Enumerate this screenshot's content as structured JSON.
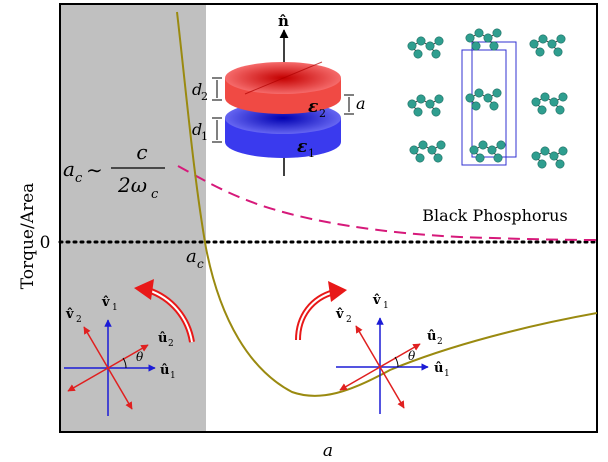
{
  "axes": {
    "ylabel": "Torque/Area",
    "xlabel": "a",
    "zero_label": "0"
  },
  "annotations": {
    "ac_formula_lhs": "a",
    "ac_formula_lhs_sub": "c",
    "ac_formula_sim": "∼",
    "ac_formula_num": "c",
    "ac_formula_den": "2ω",
    "ac_formula_den_sub": "c",
    "ac_point": "a",
    "ac_point_sub": "c",
    "material": "Black Phosphorus"
  },
  "diagram": {
    "n_hat": "n̂",
    "d2": "d",
    "d2_sub": "2",
    "d1": "d",
    "d1_sub": "1",
    "eps2": "ε",
    "eps2_sub": "2",
    "eps1": "ε",
    "eps1_sub": "1",
    "gap": "a"
  },
  "basis_left": {
    "v1": "v̂",
    "v1_sub": "1",
    "v2": "v̂",
    "v2_sub": "2",
    "u1": "û",
    "u1_sub": "1",
    "u2": "û",
    "u2_sub": "2",
    "theta": "θ"
  },
  "basis_right": {
    "v1": "v̂",
    "v1_sub": "1",
    "v2": "v̂",
    "v2_sub": "2",
    "u1": "û",
    "u1_sub": "1",
    "u2": "û",
    "u2_sub": "2",
    "theta": "θ"
  },
  "colors": {
    "torque_curve": "#9a8a10",
    "dashed_curve": "#d6197a",
    "shaded_region": "#c0c0c0",
    "top_slab": "#e8312a",
    "bottom_slab": "#2a2ae8",
    "basis_blue": "#1b1bd6",
    "basis_red": "#e02020",
    "rotation_arrow": "#e81818",
    "atoms": "#2f9e8f"
  }
}
